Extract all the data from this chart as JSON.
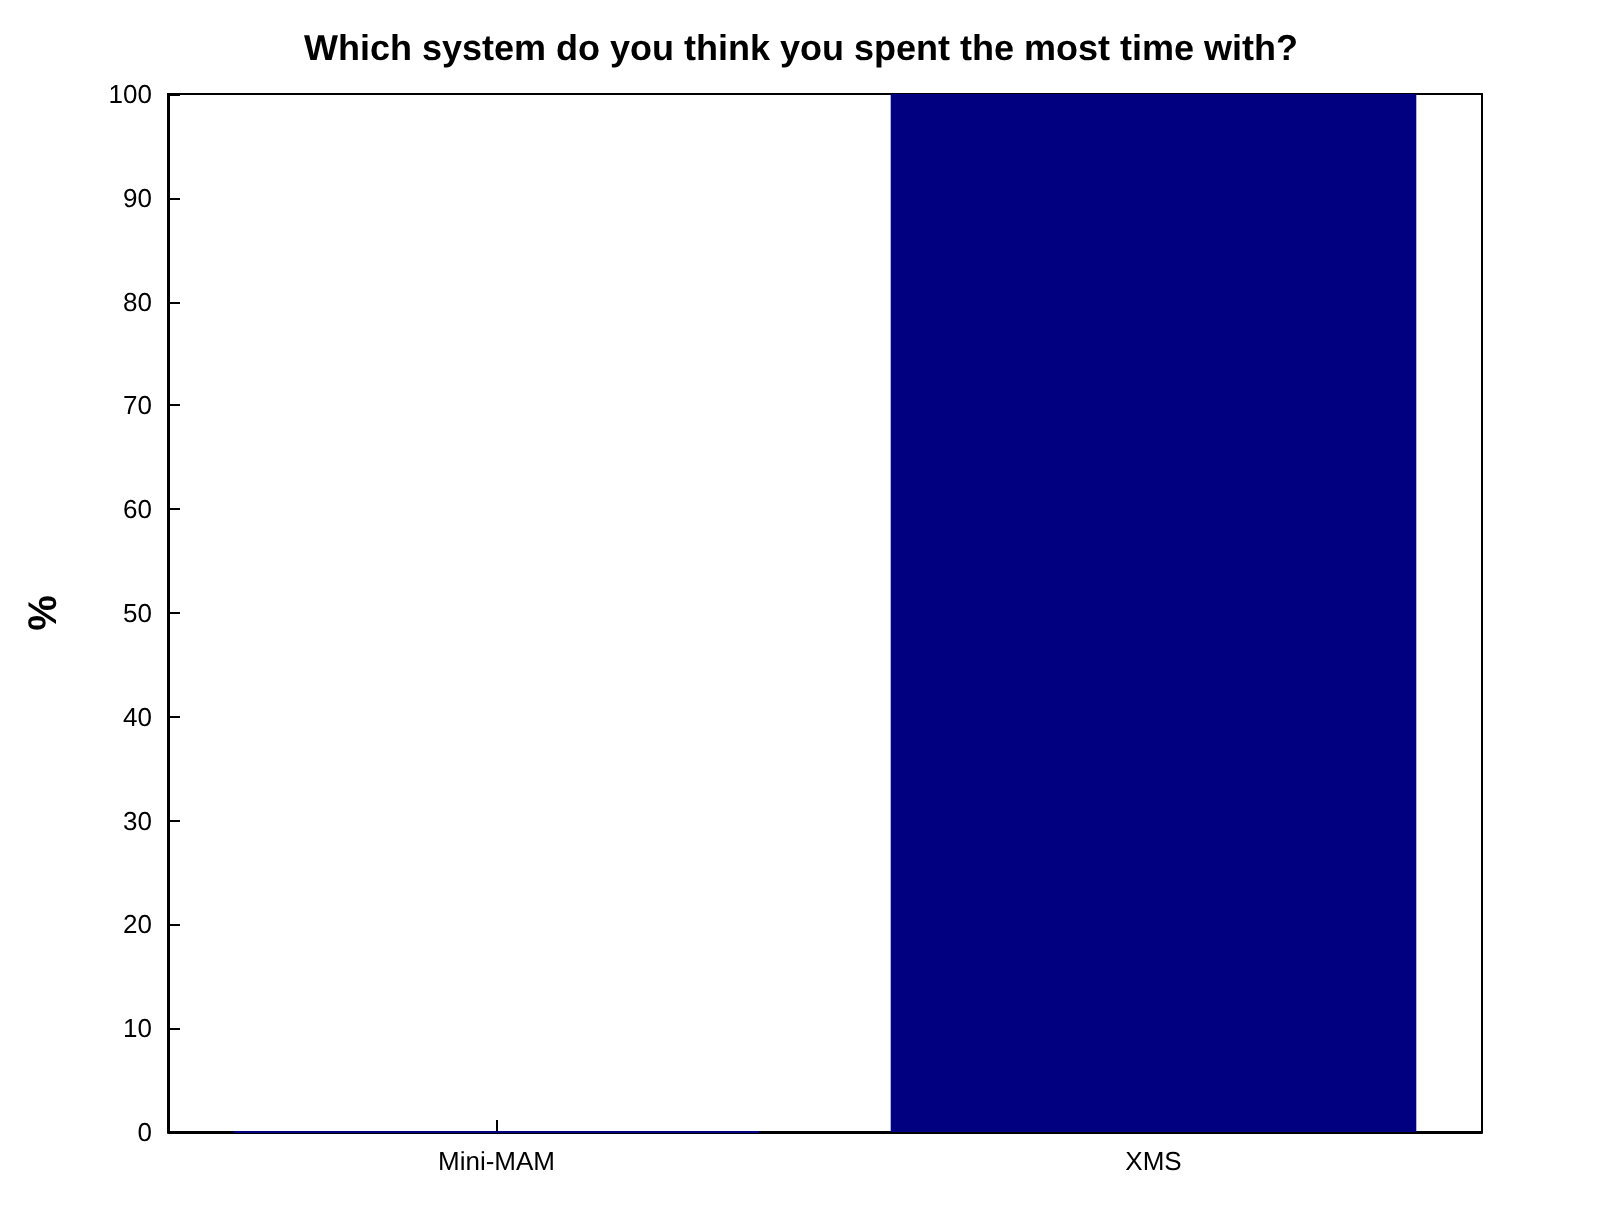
{
  "chart_data": {
    "type": "bar",
    "title": "Which system do you think you spent the most time with?",
    "ylabel": "%",
    "categories": [
      "Mini-MAM",
      "XMS"
    ],
    "values": [
      0,
      100
    ],
    "color": "#000080",
    "ylim": [
      0,
      100
    ],
    "yticks": [
      0,
      10,
      20,
      30,
      40,
      50,
      60,
      70,
      80,
      90,
      100
    ],
    "grid": false
  }
}
